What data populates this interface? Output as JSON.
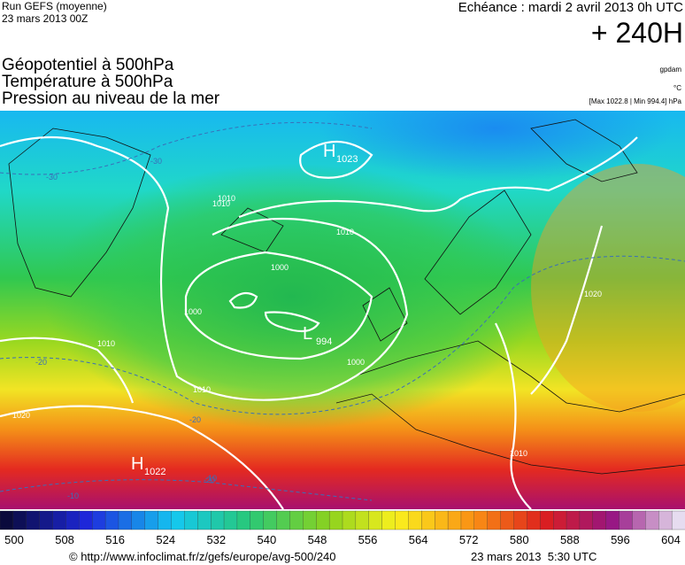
{
  "header": {
    "run": "Run GEFS (moyenne)",
    "date": "23 mars 2013 00Z",
    "echeance": "Echéance : mardi 2 avril 2013 0h UTC",
    "horizon": "+ 240H"
  },
  "legend": {
    "fields": [
      "Géopotentiel à 500hPa",
      "Température à 500hPa",
      "Pression au niveau de la mer"
    ],
    "units": [
      "gpdam",
      "°C",
      "[Max 1022.8 | Min 994.4] hPa"
    ]
  },
  "map": {
    "centers": [
      {
        "letter": "H",
        "value": 1023
      },
      {
        "letter": "L",
        "value": 994
      },
      {
        "letter": "H",
        "value": 1022
      }
    ],
    "isobar_labels": [
      1010,
      1010,
      1000,
      1000,
      1000,
      1010,
      1010,
      1020,
      1020,
      1010,
      1010
    ],
    "temperature_labels": [
      -30,
      -30,
      -20,
      -20,
      -20,
      -10,
      -10
    ]
  },
  "colorbar": {
    "labels": [
      500,
      508,
      516,
      524,
      532,
      540,
      548,
      556,
      564,
      572,
      580,
      588,
      596,
      604
    ]
  },
  "footer": {
    "url": "© http://www.infoclimat.fr/z/gefs/europe/avg-500/240",
    "time": "23 mars 2013  5:30 UTC"
  }
}
